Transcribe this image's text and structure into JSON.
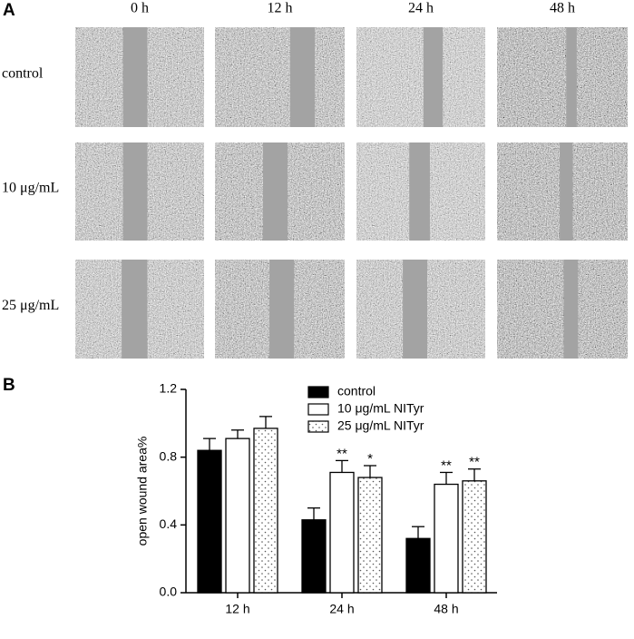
{
  "panel_a": {
    "label": "A",
    "columns": [
      "0 h",
      "12 h",
      "24 h",
      "48 h"
    ],
    "rows": [
      "control",
      "10 μg/mL",
      "25 μg/mL"
    ]
  },
  "panel_b": {
    "label": "B"
  },
  "chart_data": {
    "type": "bar",
    "ylabel": "open wound area%",
    "categories": [
      "12 h",
      "24 h",
      "48 h"
    ],
    "ylim": [
      0,
      1.2
    ],
    "yticks": [
      {
        "value": 0,
        "label": "0.0"
      },
      0.4,
      0.8,
      1.2
    ],
    "legend": "top-right",
    "series": [
      {
        "name": "control",
        "color": "#000000",
        "pattern": "solid",
        "values": [
          0.84,
          0.43,
          0.32
        ],
        "errors": [
          0.07,
          0.07,
          0.07
        ],
        "significance": [
          null,
          null,
          null
        ]
      },
      {
        "name": "10 μg/mL NITyr",
        "color": "#ffffff",
        "pattern": "solid",
        "values": [
          0.91,
          0.71,
          0.64
        ],
        "errors": [
          0.05,
          0.07,
          0.07
        ],
        "significance": [
          null,
          "**",
          "**"
        ]
      },
      {
        "name": "25 μg/mL NITyr",
        "color": "#ffffff",
        "pattern": "dots",
        "values": [
          0.97,
          0.68,
          0.66
        ],
        "errors": [
          0.07,
          0.07,
          0.07
        ],
        "significance": [
          null,
          "*",
          "**"
        ]
      }
    ]
  }
}
